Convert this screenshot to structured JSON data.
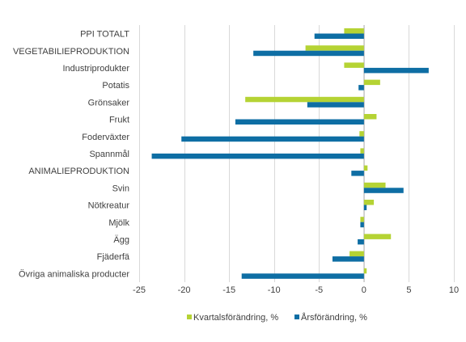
{
  "chart_data": {
    "type": "bar",
    "orientation": "horizontal",
    "categories": [
      "PPI TOTALT",
      "VEGETABILIEPRODUKTION",
      "Industriprodukter",
      "Potatis",
      "Grönsaker",
      "Frukt",
      "Foderväxter",
      "Spannmål",
      "ANIMALIEPRODUKTION",
      "Svin",
      "Nötkreatur",
      "Mjölk",
      "Ägg",
      "Fjäderfä",
      "Övriga animaliska producter"
    ],
    "series": [
      {
        "name": "Kvartalsförändring, %",
        "color": "#b5d334",
        "values": [
          -2.2,
          -6.5,
          -2.2,
          1.8,
          -13.2,
          1.4,
          -0.5,
          -0.4,
          0.4,
          2.4,
          1.1,
          -0.4,
          3.0,
          -1.6,
          0.3
        ]
      },
      {
        "name": "Årsförändring, %",
        "color": "#0e6ea4",
        "values": [
          -5.5,
          -12.3,
          7.2,
          -0.6,
          -6.3,
          -14.3,
          -20.3,
          -23.6,
          -1.4,
          4.4,
          0.3,
          -0.4,
          -0.7,
          -3.5,
          -13.6
        ]
      }
    ],
    "xlim": [
      -25,
      10
    ],
    "xticks": [
      -25,
      -20,
      -15,
      -10,
      -5,
      0,
      5,
      10
    ],
    "grid": true,
    "legend_position": "bottom"
  }
}
